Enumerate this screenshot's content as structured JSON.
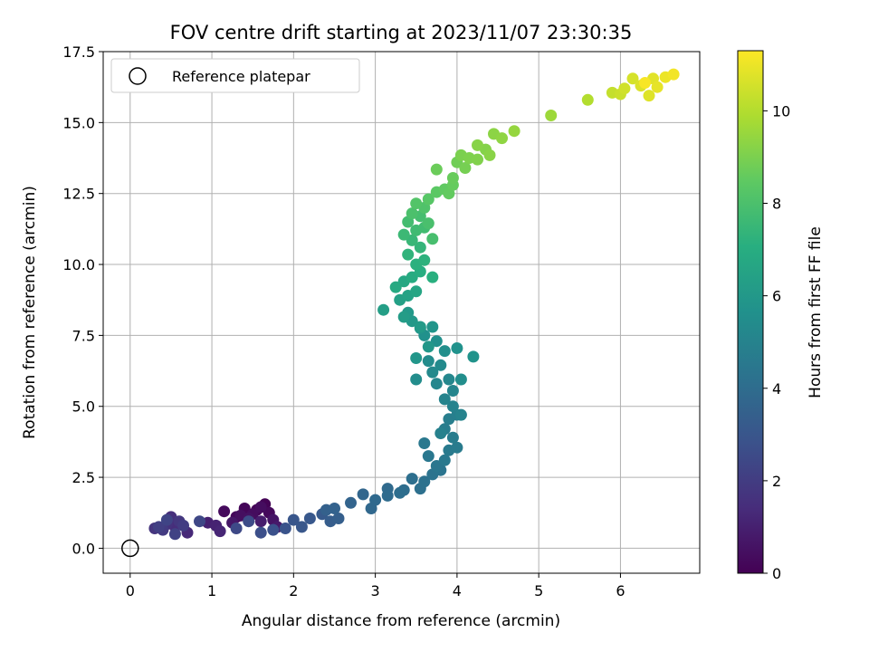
{
  "chart_data": {
    "type": "scatter",
    "title": "FOV centre drift starting at 2023/11/07 23:30:35",
    "xlabel": "Angular distance from reference (arcmin)",
    "ylabel": "Rotation from reference (arcmin)",
    "xlim": [
      -0.33,
      6.97
    ],
    "ylim": [
      -0.88,
      17.5
    ],
    "xticks": [
      "0",
      "1",
      "2",
      "3",
      "4",
      "5",
      "6"
    ],
    "yticks": [
      "0.0",
      "2.5",
      "5.0",
      "7.5",
      "10.0",
      "12.5",
      "15.0",
      "17.5"
    ],
    "grid": true,
    "legend": {
      "placement": "top-left",
      "entries": [
        "Reference platepar"
      ]
    },
    "colorbar": {
      "label": "Hours from first FF file",
      "range": [
        0,
        11.3
      ],
      "ticks": [
        "0",
        "2",
        "4",
        "6",
        "8",
        "10"
      ],
      "colormap": "viridis"
    },
    "reference_point": {
      "x": 0,
      "y": 0,
      "label": "Reference platepar"
    },
    "series": [
      {
        "points": [
          [
            1.65,
            1.55,
            0.05
          ],
          [
            1.55,
            1.35,
            0.1
          ],
          [
            1.4,
            1.4,
            0.15
          ],
          [
            1.3,
            1.1,
            0.2
          ],
          [
            1.7,
            1.25,
            0.25
          ],
          [
            1.15,
            1.3,
            0.3
          ],
          [
            1.5,
            1.2,
            0.35
          ],
          [
            1.6,
            1.45,
            0.4
          ],
          [
            1.35,
            1.15,
            0.45
          ],
          [
            1.45,
            1.05,
            0.5
          ],
          [
            1.75,
            1.0,
            0.6
          ],
          [
            1.25,
            0.9,
            0.7
          ],
          [
            1.8,
            0.75,
            0.8
          ],
          [
            1.6,
            0.95,
            0.9
          ],
          [
            0.95,
            0.9,
            1.0
          ],
          [
            1.05,
            0.8,
            1.1
          ],
          [
            1.1,
            0.6,
            1.2
          ],
          [
            0.7,
            0.55,
            1.3
          ],
          [
            0.55,
            0.75,
            1.4
          ],
          [
            0.5,
            1.1,
            1.5
          ],
          [
            0.45,
            0.85,
            1.6
          ],
          [
            0.3,
            0.7,
            1.7
          ],
          [
            0.6,
            0.95,
            1.8
          ],
          [
            0.4,
            0.65,
            1.9
          ],
          [
            0.65,
            0.8,
            2.0
          ],
          [
            0.35,
            0.75,
            2.1
          ],
          [
            0.55,
            0.5,
            2.2
          ],
          [
            0.45,
            1.0,
            2.3
          ],
          [
            0.85,
            0.95,
            2.4
          ],
          [
            1.3,
            0.7,
            2.5
          ],
          [
            1.45,
            0.95,
            2.6
          ],
          [
            1.6,
            0.55,
            2.7
          ],
          [
            1.75,
            0.65,
            2.8
          ],
          [
            1.9,
            0.7,
            2.9
          ],
          [
            2.0,
            1.0,
            3.0
          ],
          [
            2.1,
            0.75,
            3.05
          ],
          [
            2.2,
            1.05,
            3.1
          ],
          [
            2.35,
            1.2,
            3.2
          ],
          [
            2.45,
            0.95,
            3.3
          ],
          [
            2.55,
            1.05,
            3.4
          ],
          [
            2.4,
            1.35,
            3.5
          ],
          [
            2.5,
            1.4,
            3.55
          ],
          [
            2.7,
            1.6,
            3.6
          ],
          [
            2.85,
            1.9,
            3.7
          ],
          [
            2.95,
            1.4,
            3.8
          ],
          [
            3.0,
            1.7,
            3.85
          ],
          [
            3.15,
            2.1,
            3.9
          ],
          [
            3.15,
            1.85,
            3.95
          ],
          [
            3.35,
            2.05,
            4.0
          ],
          [
            3.3,
            1.95,
            4.05
          ],
          [
            3.45,
            2.45,
            4.1
          ],
          [
            3.55,
            2.1,
            4.15
          ],
          [
            3.6,
            2.35,
            4.2
          ],
          [
            3.7,
            2.6,
            4.3
          ],
          [
            3.8,
            2.75,
            4.35
          ],
          [
            3.75,
            2.9,
            4.4
          ],
          [
            3.65,
            3.25,
            4.45
          ],
          [
            3.6,
            3.7,
            4.5
          ],
          [
            3.85,
            3.1,
            4.55
          ],
          [
            3.9,
            3.45,
            4.6
          ],
          [
            4.0,
            3.55,
            4.65
          ],
          [
            3.95,
            3.9,
            4.7
          ],
          [
            3.85,
            4.2,
            4.75
          ],
          [
            3.9,
            4.55,
            4.8
          ],
          [
            4.0,
            4.7,
            4.85
          ],
          [
            3.8,
            4.05,
            4.9
          ],
          [
            3.95,
            5.0,
            4.95
          ],
          [
            4.05,
            4.7,
            5.0
          ],
          [
            3.85,
            5.25,
            5.05
          ],
          [
            3.95,
            5.55,
            5.1
          ],
          [
            3.75,
            5.8,
            5.15
          ],
          [
            3.9,
            5.95,
            5.2
          ],
          [
            3.7,
            6.2,
            5.3
          ],
          [
            3.8,
            6.45,
            5.35
          ],
          [
            3.65,
            6.6,
            5.4
          ],
          [
            3.5,
            5.95,
            5.45
          ],
          [
            4.05,
            5.95,
            5.5
          ],
          [
            3.85,
            6.95,
            5.55
          ],
          [
            3.75,
            7.3,
            5.6
          ],
          [
            3.6,
            7.5,
            5.65
          ],
          [
            4.0,
            7.05,
            5.7
          ],
          [
            4.2,
            6.75,
            5.75
          ],
          [
            3.55,
            7.75,
            5.8
          ],
          [
            3.7,
            7.8,
            5.85
          ],
          [
            3.5,
            6.7,
            5.9
          ],
          [
            3.65,
            7.1,
            5.95
          ],
          [
            3.45,
            8.0,
            6.0
          ],
          [
            3.4,
            8.3,
            6.05
          ],
          [
            3.55,
            7.8,
            6.1
          ],
          [
            3.35,
            8.15,
            6.2
          ],
          [
            3.1,
            8.4,
            6.3
          ],
          [
            3.3,
            8.75,
            6.4
          ],
          [
            3.4,
            8.9,
            6.5
          ],
          [
            3.5,
            9.05,
            6.6
          ],
          [
            3.35,
            9.4,
            6.7
          ],
          [
            3.25,
            9.2,
            6.8
          ],
          [
            3.45,
            9.55,
            6.9
          ],
          [
            3.55,
            9.75,
            7.0
          ],
          [
            3.7,
            9.55,
            7.1
          ],
          [
            3.5,
            10.0,
            7.15
          ],
          [
            3.6,
            10.15,
            7.2
          ],
          [
            3.4,
            10.35,
            7.3
          ],
          [
            3.55,
            10.6,
            7.4
          ],
          [
            3.45,
            10.85,
            7.5
          ],
          [
            3.35,
            11.05,
            7.6
          ],
          [
            3.5,
            11.2,
            7.7
          ],
          [
            3.6,
            11.3,
            7.75
          ],
          [
            3.4,
            11.5,
            7.8
          ],
          [
            3.55,
            11.7,
            7.85
          ],
          [
            3.7,
            10.9,
            7.9
          ],
          [
            3.65,
            11.45,
            7.95
          ],
          [
            3.45,
            11.8,
            8.0
          ],
          [
            3.6,
            12.0,
            8.1
          ],
          [
            3.5,
            12.15,
            8.2
          ],
          [
            3.65,
            12.3,
            8.3
          ],
          [
            3.75,
            12.55,
            8.4
          ],
          [
            3.85,
            12.65,
            8.5
          ],
          [
            3.9,
            12.5,
            8.55
          ],
          [
            3.95,
            12.8,
            8.6
          ],
          [
            3.95,
            13.05,
            8.65
          ],
          [
            3.75,
            13.35,
            8.7
          ],
          [
            4.0,
            13.6,
            8.8
          ],
          [
            4.1,
            13.4,
            8.9
          ],
          [
            4.05,
            13.85,
            9.0
          ],
          [
            4.15,
            13.75,
            9.05
          ],
          [
            4.25,
            13.7,
            9.1
          ],
          [
            4.35,
            14.05,
            9.15
          ],
          [
            4.25,
            14.2,
            9.2
          ],
          [
            4.4,
            13.85,
            9.25
          ],
          [
            4.45,
            14.6,
            9.3
          ],
          [
            4.55,
            14.45,
            9.35
          ],
          [
            4.7,
            14.7,
            9.45
          ],
          [
            5.15,
            15.25,
            9.6
          ],
          [
            5.6,
            15.8,
            10.0
          ],
          [
            5.9,
            16.05,
            10.3
          ],
          [
            6.0,
            16.0,
            10.4
          ],
          [
            6.05,
            16.2,
            10.5
          ],
          [
            6.15,
            16.55,
            10.6
          ],
          [
            6.25,
            16.3,
            10.7
          ],
          [
            6.35,
            15.95,
            10.75
          ],
          [
            6.4,
            16.55,
            10.8
          ],
          [
            6.45,
            16.25,
            10.9
          ],
          [
            6.55,
            16.6,
            11.0
          ],
          [
            6.65,
            16.7,
            11.1
          ],
          [
            6.3,
            16.4,
            11.2
          ]
        ]
      }
    ]
  }
}
